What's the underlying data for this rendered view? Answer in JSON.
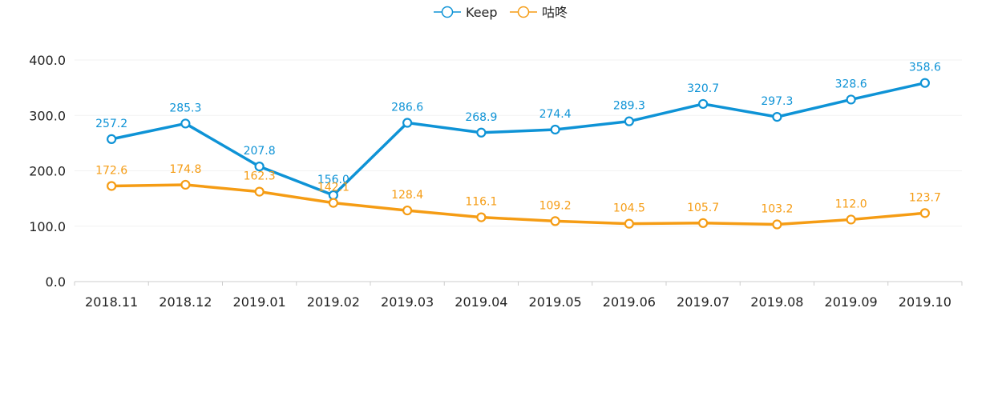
{
  "chart_data": {
    "type": "line",
    "categories": [
      "2018.11",
      "2018.12",
      "2019.01",
      "2019.02",
      "2019.03",
      "2019.04",
      "2019.05",
      "2019.06",
      "2019.07",
      "2019.08",
      "2019.09",
      "2019.10"
    ],
    "series": [
      {
        "name": "Keep",
        "color": "#0e93d6",
        "values": [
          257.2,
          285.3,
          207.8,
          156.0,
          286.6,
          268.9,
          274.4,
          289.3,
          320.7,
          297.3,
          328.6,
          358.6
        ],
        "labels": [
          "257.2",
          "285.3",
          "207.8",
          "156.0",
          "286.6",
          "268.9",
          "274.4",
          "289.3",
          "320.7",
          "297.3",
          "328.6",
          "358.6"
        ]
      },
      {
        "name": "咕咚",
        "color": "#f59c14",
        "values": [
          172.6,
          174.8,
          162.3,
          142.1,
          128.4,
          116.1,
          109.2,
          104.5,
          105.7,
          103.2,
          112.0,
          123.7
        ],
        "labels": [
          "172.6",
          "174.8",
          "162.3",
          "142.1",
          "128.4",
          "116.1",
          "109.2",
          "104.5",
          "105.7",
          "103.2",
          "112.0",
          "123.7"
        ]
      }
    ],
    "ylim": [
      0,
      400
    ],
    "yticks": [
      "0.0",
      "100.0",
      "200.0",
      "300.0",
      "400.0"
    ],
    "ytick_values": [
      0,
      100,
      200,
      300,
      400
    ],
    "grid": true,
    "legend_position": "top-center"
  }
}
